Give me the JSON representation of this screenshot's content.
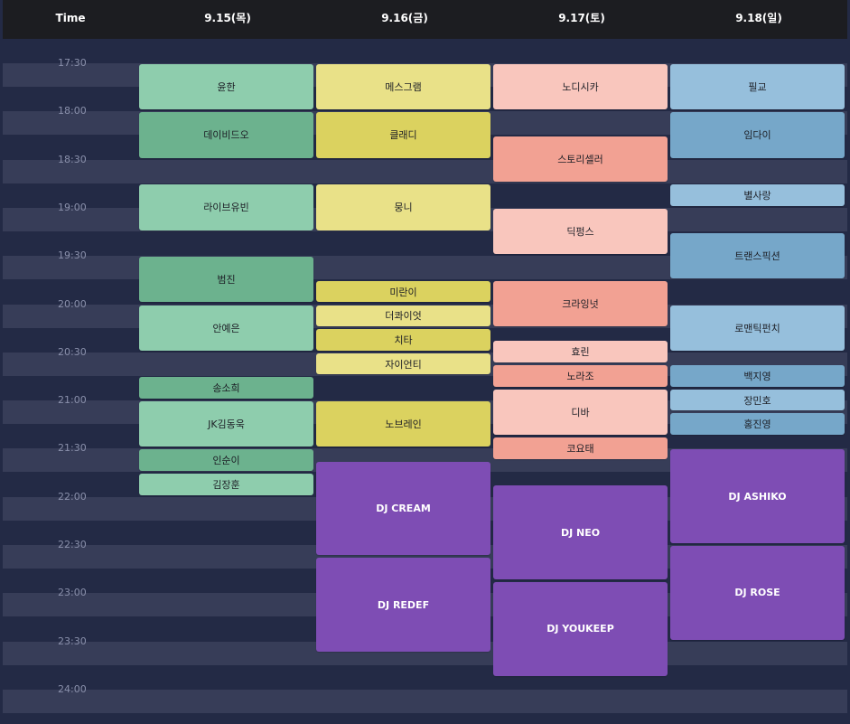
{
  "header": {
    "time_label": "Time",
    "days": [
      "9.15(목)",
      "9.16(금)",
      "9.17(토)",
      "9.18(일)"
    ]
  },
  "time_labels": [
    "17:30",
    "18:00",
    "18:30",
    "19:00",
    "19:30",
    "20:00",
    "20:30",
    "21:00",
    "21:30",
    "22:00",
    "22:30",
    "23:00",
    "23:30",
    "24:00"
  ],
  "colors": {
    "thu_a": "#8ecdad",
    "thu_b": "#6cb28e",
    "fri_a": "#e9e188",
    "fri_b": "#dbd25f",
    "sat_a": "#f9c6bd",
    "sat_b": "#f2a193",
    "sun_a": "#96bfdc",
    "sun_b": "#76a7c9",
    "dj": "#7e4db4"
  },
  "events": [
    {
      "day": 0,
      "start": 0,
      "end": 1,
      "label": "윤한",
      "color": "thu_a"
    },
    {
      "day": 0,
      "start": 1,
      "end": 2,
      "label": "데이비드오",
      "color": "thu_b"
    },
    {
      "day": 0,
      "start": 2.5,
      "end": 3.5,
      "label": "라이브유빈",
      "color": "thu_a"
    },
    {
      "day": 0,
      "start": 4,
      "end": 5,
      "label": "범진",
      "color": "thu_b"
    },
    {
      "day": 0,
      "start": 5,
      "end": 6,
      "label": "안예은",
      "color": "thu_a"
    },
    {
      "day": 0,
      "start": 6.5,
      "end": 7,
      "label": "송소희",
      "color": "thu_b"
    },
    {
      "day": 0,
      "start": 7,
      "end": 8,
      "label": "JK김동욱",
      "color": "thu_a"
    },
    {
      "day": 0,
      "start": 8,
      "end": 8.5,
      "label": "인순이",
      "color": "thu_b"
    },
    {
      "day": 0,
      "start": 8.5,
      "end": 9,
      "label": "김장훈",
      "color": "thu_a"
    },
    {
      "day": 1,
      "start": 0,
      "end": 1,
      "label": "메스그램",
      "color": "fri_a"
    },
    {
      "day": 1,
      "start": 1,
      "end": 2,
      "label": "클래디",
      "color": "fri_b"
    },
    {
      "day": 1,
      "start": 2.5,
      "end": 3.5,
      "label": "뭉니",
      "color": "fri_a"
    },
    {
      "day": 1,
      "start": 4.5,
      "end": 5,
      "label": "미란이",
      "color": "fri_b"
    },
    {
      "day": 1,
      "start": 5,
      "end": 5.5,
      "label": "더콰이엇",
      "color": "fri_a"
    },
    {
      "day": 1,
      "start": 5.5,
      "end": 6,
      "label": "치타",
      "color": "fri_b"
    },
    {
      "day": 1,
      "start": 6,
      "end": 6.5,
      "label": "자이언티",
      "color": "fri_a"
    },
    {
      "day": 1,
      "start": 7,
      "end": 8,
      "label": "노브레인",
      "color": "fri_b"
    },
    {
      "day": 1,
      "start": 8.25,
      "end": 10.25,
      "label": "DJ CREAM",
      "color": "dj",
      "dj": true
    },
    {
      "day": 1,
      "start": 10.25,
      "end": 12.25,
      "label": "DJ REDEF",
      "color": "dj",
      "dj": true
    },
    {
      "day": 2,
      "start": 0,
      "end": 1,
      "label": "노디시카",
      "color": "sat_a"
    },
    {
      "day": 2,
      "start": 1.5,
      "end": 2.5,
      "label": "스토리셀러",
      "color": "sat_b"
    },
    {
      "day": 2,
      "start": 3,
      "end": 4,
      "label": "딕펑스",
      "color": "sat_a"
    },
    {
      "day": 2,
      "start": 4.5,
      "end": 5.5,
      "label": "크라잉넛",
      "color": "sat_b"
    },
    {
      "day": 2,
      "start": 5.75,
      "end": 6.25,
      "label": "효린",
      "color": "sat_a"
    },
    {
      "day": 2,
      "start": 6.25,
      "end": 6.75,
      "label": "노라조",
      "color": "sat_b"
    },
    {
      "day": 2,
      "start": 6.75,
      "end": 7.75,
      "label": "디바",
      "color": "sat_a"
    },
    {
      "day": 2,
      "start": 7.75,
      "end": 8.25,
      "label": "코요태",
      "color": "sat_b"
    },
    {
      "day": 2,
      "start": 8.75,
      "end": 10.75,
      "label": "DJ NEO",
      "color": "dj",
      "dj": true
    },
    {
      "day": 2,
      "start": 10.75,
      "end": 12.75,
      "label": "DJ YOUKEEP",
      "color": "dj",
      "dj": true
    },
    {
      "day": 3,
      "start": 0,
      "end": 1,
      "label": "필교",
      "color": "sun_a"
    },
    {
      "day": 3,
      "start": 1,
      "end": 2,
      "label": "임다이",
      "color": "sun_b"
    },
    {
      "day": 3,
      "start": 2.5,
      "end": 3,
      "label": "별사랑",
      "color": "sun_a"
    },
    {
      "day": 3,
      "start": 3.5,
      "end": 4.5,
      "label": "트랜스픽션",
      "color": "sun_b"
    },
    {
      "day": 3,
      "start": 5,
      "end": 6,
      "label": "로맨틱펀치",
      "color": "sun_a"
    },
    {
      "day": 3,
      "start": 6.25,
      "end": 6.75,
      "label": "백지영",
      "color": "sun_b"
    },
    {
      "day": 3,
      "start": 6.75,
      "end": 7.25,
      "label": "장민호",
      "color": "sun_a"
    },
    {
      "day": 3,
      "start": 7.25,
      "end": 7.75,
      "label": "홍진영",
      "color": "sun_b"
    },
    {
      "day": 3,
      "start": 8,
      "end": 10,
      "label": "DJ ASHIKO",
      "color": "dj",
      "dj": true
    },
    {
      "day": 3,
      "start": 10,
      "end": 12,
      "label": "DJ ROSE",
      "color": "dj",
      "dj": true
    }
  ]
}
